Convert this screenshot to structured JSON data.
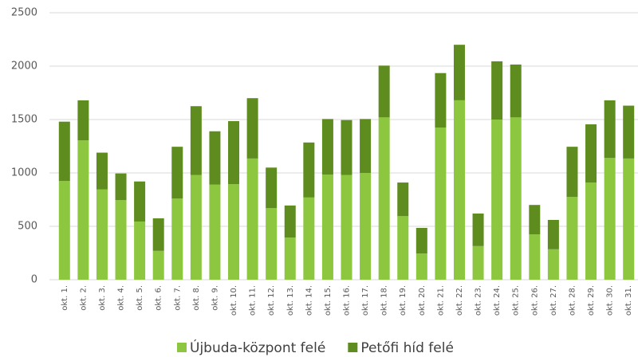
{
  "chart_data": {
    "type": "stacked_bar",
    "categories": [
      "okt. 1.",
      "okt. 2.",
      "okt. 3.",
      "okt. 4.",
      "okt. 5.",
      "okt. 6.",
      "okt. 7.",
      "okt. 8.",
      "okt. 9.",
      "okt. 10.",
      "okt. 11.",
      "okt. 12.",
      "okt. 13.",
      "okt. 14.",
      "okt. 15.",
      "okt. 16.",
      "okt. 17.",
      "okt. 18.",
      "okt. 19.",
      "okt. 20.",
      "okt. 21.",
      "okt. 22.",
      "okt. 23.",
      "okt. 24.",
      "okt. 25.",
      "okt. 26.",
      "okt. 27.",
      "okt. 28.",
      "okt. 29.",
      "okt. 30.",
      "okt. 31."
    ],
    "series": [
      {
        "name": "Újbuda-központ felé",
        "color": "#8dc63f",
        "values": [
          925,
          1305,
          845,
          745,
          545,
          270,
          760,
          980,
          890,
          895,
          1135,
          670,
          395,
          770,
          985,
          980,
          1000,
          1520,
          595,
          245,
          1425,
          1680,
          315,
          1500,
          1520,
          425,
          285,
          775,
          910,
          1140,
          1135
        ]
      },
      {
        "name": "Petőfi híd felé",
        "color": "#5e8c1f",
        "values": [
          555,
          375,
          345,
          250,
          375,
          305,
          485,
          645,
          500,
          590,
          565,
          380,
          300,
          515,
          520,
          515,
          505,
          485,
          315,
          240,
          510,
          520,
          305,
          545,
          495,
          275,
          275,
          470,
          545,
          540,
          495
        ]
      }
    ],
    "ylim": [
      0,
      2500
    ],
    "yticks": [
      0,
      500,
      1000,
      1500,
      2000,
      2500
    ],
    "grid": true,
    "legend": "bottom"
  }
}
